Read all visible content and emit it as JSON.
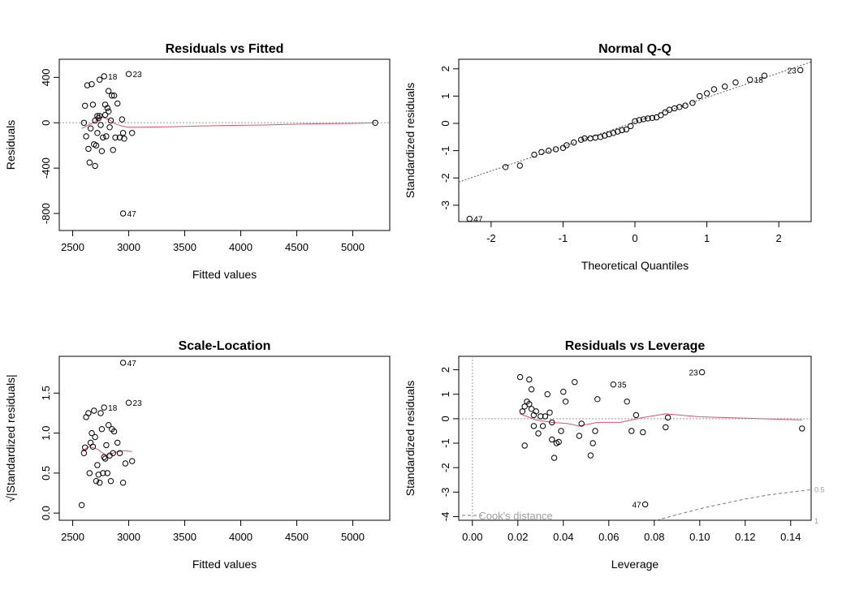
{
  "chart_data": [
    {
      "id": "p1",
      "type": "scatter",
      "title": "Residuals vs Fitted",
      "xlabel": "Fitted values",
      "ylabel": "Residuals",
      "xlim": [
        2380,
        5330
      ],
      "ylim": [
        -950,
        560
      ],
      "xticks": [
        2500,
        3000,
        3500,
        4000,
        4500,
        5000
      ],
      "yticks": [
        -800,
        -400,
        0,
        400
      ],
      "zero_line": 0,
      "points": [
        [
          2600,
          0
        ],
        [
          2610,
          150
        ],
        [
          2620,
          -120
        ],
        [
          2640,
          -230
        ],
        [
          2630,
          330
        ],
        [
          2650,
          -350
        ],
        [
          2660,
          -50
        ],
        [
          2670,
          340
        ],
        [
          2680,
          160
        ],
        [
          2690,
          -190
        ],
        [
          2700,
          -380
        ],
        [
          2700,
          20
        ],
        [
          2710,
          -200
        ],
        [
          2720,
          -90
        ],
        [
          2720,
          60
        ],
        [
          2730,
          40
        ],
        [
          2740,
          380
        ],
        [
          2740,
          60
        ],
        [
          2750,
          -20
        ],
        [
          2760,
          -250
        ],
        [
          2770,
          -130
        ],
        [
          2780,
          410
        ],
        [
          2790,
          160
        ],
        [
          2790,
          70
        ],
        [
          2800,
          -120
        ],
        [
          2810,
          130
        ],
        [
          2820,
          280
        ],
        [
          2820,
          100
        ],
        [
          2830,
          -40
        ],
        [
          2840,
          20
        ],
        [
          2850,
          240
        ],
        [
          2860,
          -240
        ],
        [
          2870,
          240
        ],
        [
          2880,
          -130
        ],
        [
          2900,
          170
        ],
        [
          2920,
          -130
        ],
        [
          2940,
          30
        ],
        [
          2950,
          -90
        ],
        [
          2960,
          -140
        ],
        [
          3000,
          430
        ],
        [
          3030,
          -90
        ],
        [
          5200,
          0
        ],
        [
          2950,
          -800
        ]
      ],
      "smooth": [
        [
          2580,
          -50
        ],
        [
          2640,
          -20
        ],
        [
          2700,
          10
        ],
        [
          2760,
          50
        ],
        [
          2820,
          30
        ],
        [
          2880,
          -10
        ],
        [
          2940,
          -30
        ],
        [
          3000,
          -40
        ],
        [
          3100,
          -40
        ],
        [
          3400,
          -35
        ],
        [
          3800,
          -25
        ],
        [
          4200,
          -20
        ],
        [
          4600,
          -10
        ],
        [
          5000,
          -5
        ],
        [
          5200,
          0
        ]
      ],
      "labels": [
        {
          "text": "18",
          "x": 2780,
          "y": 410,
          "pos": "right"
        },
        {
          "text": "23",
          "x": 3000,
          "y": 430,
          "pos": "right"
        },
        {
          "text": "47",
          "x": 2950,
          "y": -800,
          "pos": "right"
        }
      ]
    },
    {
      "id": "p2",
      "type": "scatter",
      "title": "Normal Q-Q",
      "xlabel": "Theoretical Quantiles",
      "ylabel": "Standardized residuals",
      "xlim": [
        -2.45,
        2.45
      ],
      "ylim": [
        -3.6,
        2.35
      ],
      "xticks": [
        -2,
        -1,
        0,
        1,
        2
      ],
      "yticks": [
        -3,
        -2,
        -1,
        0,
        1,
        2
      ],
      "points": [
        [
          -2.3,
          -3.5
        ],
        [
          -1.8,
          -1.6
        ],
        [
          -1.6,
          -1.55
        ],
        [
          -1.4,
          -1.15
        ],
        [
          -1.3,
          -1.05
        ],
        [
          -1.2,
          -1.0
        ],
        [
          -1.1,
          -0.95
        ],
        [
          -1.0,
          -0.9
        ],
        [
          -0.95,
          -0.8
        ],
        [
          -0.85,
          -0.7
        ],
        [
          -0.75,
          -0.6
        ],
        [
          -0.7,
          -0.55
        ],
        [
          -0.62,
          -0.55
        ],
        [
          -0.55,
          -0.52
        ],
        [
          -0.48,
          -0.5
        ],
        [
          -0.42,
          -0.45
        ],
        [
          -0.36,
          -0.4
        ],
        [
          -0.3,
          -0.35
        ],
        [
          -0.24,
          -0.3
        ],
        [
          -0.18,
          -0.25
        ],
        [
          -0.12,
          -0.22
        ],
        [
          -0.06,
          -0.1
        ],
        [
          0.0,
          0.08
        ],
        [
          0.06,
          0.12
        ],
        [
          0.12,
          0.15
        ],
        [
          0.18,
          0.18
        ],
        [
          0.24,
          0.2
        ],
        [
          0.3,
          0.22
        ],
        [
          0.36,
          0.3
        ],
        [
          0.42,
          0.4
        ],
        [
          0.48,
          0.5
        ],
        [
          0.55,
          0.55
        ],
        [
          0.62,
          0.6
        ],
        [
          0.7,
          0.65
        ],
        [
          0.8,
          0.75
        ],
        [
          0.9,
          1.0
        ],
        [
          1.0,
          1.1
        ],
        [
          1.1,
          1.25
        ],
        [
          1.25,
          1.35
        ],
        [
          1.4,
          1.5
        ],
        [
          1.6,
          1.6
        ],
        [
          1.8,
          1.75
        ],
        [
          2.3,
          1.95
        ]
      ],
      "ref_line": [
        [
          -2.45,
          -2.15
        ],
        [
          2.45,
          2.25
        ]
      ],
      "labels": [
        {
          "text": "18",
          "x": 1.6,
          "y": 1.6,
          "pos": "right"
        },
        {
          "text": "23",
          "x": 2.3,
          "y": 1.95,
          "pos": "left"
        },
        {
          "text": "47",
          "x": -2.3,
          "y": -3.5,
          "pos": "right"
        }
      ]
    },
    {
      "id": "p3",
      "type": "scatter",
      "title": "Scale-Location",
      "xlabel": "Fitted values",
      "ylabel": "√|Standardized residuals|",
      "xlim": [
        2380,
        5330
      ],
      "ylim": [
        -0.09,
        1.96
      ],
      "xticks": [
        2500,
        3000,
        3500,
        4000,
        4500,
        5000
      ],
      "yticks": [
        0.0,
        0.5,
        1.0,
        1.5
      ],
      "yticklabels": [
        "0.0",
        "0.5",
        "1.0",
        "1.5"
      ],
      "points": [
        [
          2580,
          0.1
        ],
        [
          2600,
          0.75
        ],
        [
          2610,
          0.82
        ],
        [
          2620,
          1.2
        ],
        [
          2640,
          1.25
        ],
        [
          2650,
          0.5
        ],
        [
          2660,
          0.88
        ],
        [
          2670,
          1.0
        ],
        [
          2680,
          0.83
        ],
        [
          2690,
          1.28
        ],
        [
          2700,
          0.95
        ],
        [
          2710,
          0.4
        ],
        [
          2720,
          0.6
        ],
        [
          2730,
          0.48
        ],
        [
          2740,
          0.38
        ],
        [
          2750,
          1.25
        ],
        [
          2760,
          1.05
        ],
        [
          2770,
          0.5
        ],
        [
          2780,
          0.7
        ],
        [
          2790,
          0.68
        ],
        [
          2800,
          0.85
        ],
        [
          2810,
          0.5
        ],
        [
          2820,
          1.1
        ],
        [
          2830,
          0.72
        ],
        [
          2840,
          0.4
        ],
        [
          2850,
          1.05
        ],
        [
          2860,
          0.75
        ],
        [
          2870,
          1.02
        ],
        [
          2900,
          0.88
        ],
        [
          2920,
          0.75
        ],
        [
          2950,
          0.38
        ],
        [
          2970,
          0.62
        ],
        [
          3030,
          0.65
        ],
        [
          2780,
          1.32
        ],
        [
          3000,
          1.38
        ],
        [
          2950,
          1.88
        ]
      ],
      "smooth": [
        [
          2580,
          0.78
        ],
        [
          2650,
          0.83
        ],
        [
          2720,
          0.8
        ],
        [
          2800,
          0.72
        ],
        [
          2880,
          0.76
        ],
        [
          2960,
          0.78
        ],
        [
          3030,
          0.77
        ]
      ],
      "labels": [
        {
          "text": "18",
          "x": 2780,
          "y": 1.32,
          "pos": "right"
        },
        {
          "text": "23",
          "x": 3000,
          "y": 1.38,
          "pos": "right"
        },
        {
          "text": "47",
          "x": 2950,
          "y": 1.88,
          "pos": "right"
        }
      ]
    },
    {
      "id": "p4",
      "type": "scatter",
      "title": "Residuals vs Leverage",
      "xlabel": "Leverage",
      "ylabel": "Standardized residuals",
      "xlim": [
        -0.006,
        0.149
      ],
      "ylim": [
        -4.15,
        2.55
      ],
      "xticks": [
        0.0,
        0.02,
        0.04,
        0.06,
        0.08,
        0.1,
        0.12,
        0.14
      ],
      "xticklabels": [
        "0.00",
        "0.02",
        "0.04",
        "0.06",
        "0.08",
        "0.10",
        "0.12",
        "0.14"
      ],
      "yticks": [
        -4,
        -3,
        -2,
        -1,
        0,
        1,
        2
      ],
      "zero_line": 0,
      "points": [
        [
          0.021,
          1.7
        ],
        [
          0.023,
          -1.1
        ],
        [
          0.022,
          0.3
        ],
        [
          0.023,
          0.5
        ],
        [
          0.024,
          0.7
        ],
        [
          0.025,
          0.6
        ],
        [
          0.025,
          1.6
        ],
        [
          0.026,
          1.2
        ],
        [
          0.026,
          0.4
        ],
        [
          0.027,
          0.15
        ],
        [
          0.027,
          -0.3
        ],
        [
          0.028,
          0.3
        ],
        [
          0.029,
          -0.6
        ],
        [
          0.03,
          0.1
        ],
        [
          0.031,
          -0.3
        ],
        [
          0.032,
          0.1
        ],
        [
          0.033,
          1.0
        ],
        [
          0.034,
          0.25
        ],
        [
          0.035,
          -0.15
        ],
        [
          0.035,
          -0.85
        ],
        [
          0.036,
          -1.6
        ],
        [
          0.037,
          -1.0
        ],
        [
          0.038,
          -0.95
        ],
        [
          0.039,
          -0.5
        ],
        [
          0.04,
          1.1
        ],
        [
          0.041,
          0.7
        ],
        [
          0.045,
          1.5
        ],
        [
          0.047,
          -0.7
        ],
        [
          0.048,
          -0.2
        ],
        [
          0.052,
          -1.5
        ],
        [
          0.053,
          -1.0
        ],
        [
          0.054,
          -0.5
        ],
        [
          0.055,
          0.8
        ],
        [
          0.062,
          1.4
        ],
        [
          0.068,
          0.7
        ],
        [
          0.07,
          -0.5
        ],
        [
          0.072,
          0.15
        ],
        [
          0.075,
          -0.55
        ],
        [
          0.085,
          -0.35
        ],
        [
          0.086,
          0.05
        ],
        [
          0.101,
          1.9
        ],
        [
          0.145,
          -0.4
        ],
        [
          0.076,
          -3.5
        ]
      ],
      "smooth": [
        [
          0.021,
          0.2
        ],
        [
          0.028,
          -0.05
        ],
        [
          0.035,
          -0.15
        ],
        [
          0.042,
          -0.2
        ],
        [
          0.047,
          -0.3
        ],
        [
          0.055,
          -0.15
        ],
        [
          0.065,
          -0.15
        ],
        [
          0.075,
          0.05
        ],
        [
          0.085,
          0.2
        ],
        [
          0.1,
          0.08
        ],
        [
          0.12,
          0.02
        ],
        [
          0.145,
          -0.05
        ]
      ],
      "cook_curve": [
        [
          0.081,
          -4.15
        ],
        [
          0.09,
          -3.92
        ],
        [
          0.1,
          -3.68
        ],
        [
          0.11,
          -3.48
        ],
        [
          0.12,
          -3.28
        ],
        [
          0.13,
          -3.12
        ],
        [
          0.14,
          -3.0
        ],
        [
          0.149,
          -2.9
        ]
      ],
      "cook_label": "Cook's distance",
      "cook_contours": [
        "0.5",
        "1"
      ],
      "labels": [
        {
          "text": "35",
          "x": 0.062,
          "y": 1.4,
          "pos": "right"
        },
        {
          "text": "23",
          "x": 0.101,
          "y": 1.9,
          "pos": "left"
        },
        {
          "text": "47",
          "x": 0.076,
          "y": -3.5,
          "pos": "left"
        }
      ]
    }
  ]
}
